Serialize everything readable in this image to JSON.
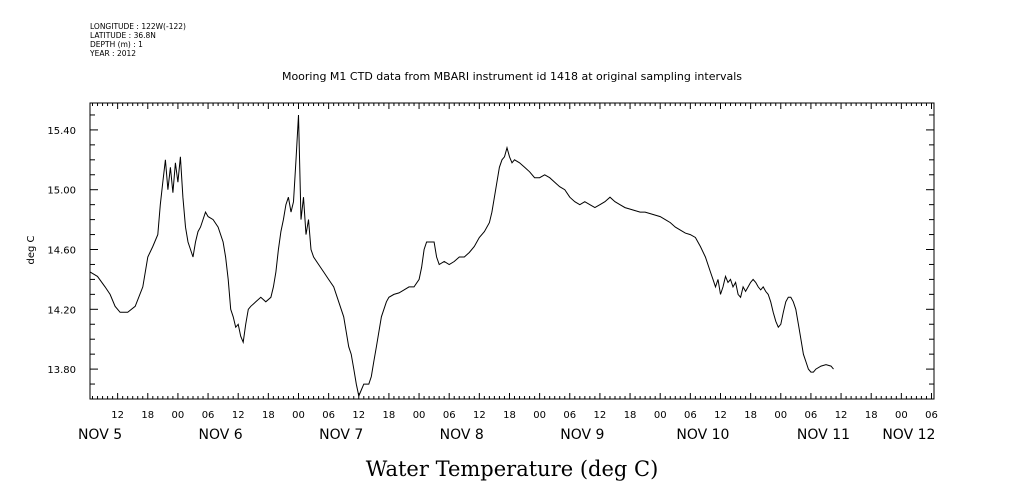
{
  "meta": {
    "longitude": "LONGITUDE : 122W(-122)",
    "latitude": "LATITUDE : 36.8N",
    "depth": "DEPTH (m) : 1",
    "year": "YEAR : 2012"
  },
  "chart_data": {
    "type": "line",
    "title": "Mooring M1 CTD data from MBARI instrument id 1418 at original sampling intervals",
    "xlabel": "Water Temperature (deg C)",
    "ylabel": "deg C",
    "x_unit": "hours from 00:00 NOV 5",
    "xlim": [
      6.5,
      174.5
    ],
    "ylim": [
      13.6,
      15.58
    ],
    "yticks": [
      13.8,
      14.2,
      14.6,
      15.0,
      15.4
    ],
    "ytick_labels": [
      "13.80",
      "14.20",
      "14.60",
      "15.00",
      "15.40"
    ],
    "hour_ticks": [
      {
        "x": 12,
        "label": "12"
      },
      {
        "x": 18,
        "label": "18"
      },
      {
        "x": 24,
        "label": "00"
      },
      {
        "x": 30,
        "label": "06"
      },
      {
        "x": 36,
        "label": "12"
      },
      {
        "x": 42,
        "label": "18"
      },
      {
        "x": 48,
        "label": "00"
      },
      {
        "x": 54,
        "label": "06"
      },
      {
        "x": 60,
        "label": "12"
      },
      {
        "x": 66,
        "label": "18"
      },
      {
        "x": 72,
        "label": "00"
      },
      {
        "x": 78,
        "label": "06"
      },
      {
        "x": 84,
        "label": "12"
      },
      {
        "x": 90,
        "label": "18"
      },
      {
        "x": 96,
        "label": "00"
      },
      {
        "x": 102,
        "label": "06"
      },
      {
        "x": 108,
        "label": "12"
      },
      {
        "x": 114,
        "label": "18"
      },
      {
        "x": 120,
        "label": "00"
      },
      {
        "x": 126,
        "label": "06"
      },
      {
        "x": 132,
        "label": "12"
      },
      {
        "x": 138,
        "label": "18"
      },
      {
        "x": 144,
        "label": "00"
      },
      {
        "x": 150,
        "label": "06"
      },
      {
        "x": 156,
        "label": "12"
      },
      {
        "x": 162,
        "label": "18"
      },
      {
        "x": 168,
        "label": "00"
      },
      {
        "x": 174,
        "label": "06"
      }
    ],
    "day_labels": [
      {
        "x": 8.5,
        "label": "NOV  5"
      },
      {
        "x": 32.5,
        "label": "NOV  6"
      },
      {
        "x": 56.5,
        "label": "NOV  7"
      },
      {
        "x": 80.5,
        "label": "NOV  8"
      },
      {
        "x": 104.5,
        "label": "NOV  9"
      },
      {
        "x": 128.5,
        "label": "NOV 10"
      },
      {
        "x": 152.5,
        "label": "NOV 11"
      },
      {
        "x": 169.5,
        "label": "NOV 12"
      }
    ],
    "series": [
      {
        "points": [
          [
            6.5,
            14.45
          ],
          [
            8,
            14.42
          ],
          [
            9.5,
            14.35
          ],
          [
            10.5,
            14.3
          ],
          [
            11.5,
            14.22
          ],
          [
            12.5,
            14.18
          ],
          [
            14,
            14.18
          ],
          [
            15.5,
            14.22
          ],
          [
            17,
            14.35
          ],
          [
            18,
            14.55
          ],
          [
            19,
            14.62
          ],
          [
            20,
            14.7
          ],
          [
            20.5,
            14.9
          ],
          [
            21,
            15.05
          ],
          [
            21.5,
            15.2
          ],
          [
            22,
            15.0
          ],
          [
            22.5,
            15.15
          ],
          [
            23,
            14.98
          ],
          [
            23.5,
            15.18
          ],
          [
            24,
            15.05
          ],
          [
            24.5,
            15.22
          ],
          [
            25,
            14.95
          ],
          [
            25.5,
            14.75
          ],
          [
            26,
            14.65
          ],
          [
            26.5,
            14.6
          ],
          [
            27,
            14.55
          ],
          [
            27.5,
            14.65
          ],
          [
            28,
            14.72
          ],
          [
            28.5,
            14.75
          ],
          [
            29,
            14.8
          ],
          [
            29.5,
            14.85
          ],
          [
            30,
            14.82
          ],
          [
            31,
            14.8
          ],
          [
            32,
            14.75
          ],
          [
            33,
            14.65
          ],
          [
            33.5,
            14.55
          ],
          [
            34,
            14.4
          ],
          [
            34.5,
            14.2
          ],
          [
            35,
            14.15
          ],
          [
            35.5,
            14.08
          ],
          [
            36,
            14.1
          ],
          [
            36.5,
            14.02
          ],
          [
            37,
            13.98
          ],
          [
            37.5,
            14.1
          ],
          [
            38,
            14.2
          ],
          [
            38.5,
            14.22
          ],
          [
            39.5,
            14.25
          ],
          [
            40.5,
            14.28
          ],
          [
            41.5,
            14.25
          ],
          [
            42.5,
            14.28
          ],
          [
            43,
            14.35
          ],
          [
            43.5,
            14.45
          ],
          [
            44,
            14.6
          ],
          [
            44.5,
            14.72
          ],
          [
            45,
            14.8
          ],
          [
            45.5,
            14.9
          ],
          [
            46,
            14.95
          ],
          [
            46.5,
            14.85
          ],
          [
            47,
            14.92
          ],
          [
            47.5,
            15.2
          ],
          [
            48,
            15.5
          ],
          [
            48.5,
            14.8
          ],
          [
            49,
            14.95
          ],
          [
            49.5,
            14.7
          ],
          [
            50,
            14.8
          ],
          [
            50.5,
            14.6
          ],
          [
            51,
            14.55
          ],
          [
            52,
            14.5
          ],
          [
            53,
            14.45
          ],
          [
            54,
            14.4
          ],
          [
            55,
            14.35
          ],
          [
            56,
            14.25
          ],
          [
            57,
            14.15
          ],
          [
            57.5,
            14.05
          ],
          [
            58,
            13.95
          ],
          [
            58.5,
            13.9
          ],
          [
            59,
            13.8
          ],
          [
            59.5,
            13.7
          ],
          [
            60,
            13.62
          ],
          [
            60.5,
            13.66
          ],
          [
            61,
            13.7
          ],
          [
            62,
            13.7
          ],
          [
            62.5,
            13.75
          ],
          [
            63,
            13.85
          ],
          [
            63.5,
            13.95
          ],
          [
            64,
            14.05
          ],
          [
            64.5,
            14.15
          ],
          [
            65,
            14.2
          ],
          [
            65.5,
            14.25
          ],
          [
            66,
            14.28
          ],
          [
            67,
            14.3
          ],
          [
            68,
            14.31
          ],
          [
            69,
            14.33
          ],
          [
            70,
            14.35
          ],
          [
            71,
            14.35
          ],
          [
            72,
            14.4
          ],
          [
            72.5,
            14.48
          ],
          [
            73,
            14.6
          ],
          [
            73.5,
            14.65
          ],
          [
            74,
            14.65
          ],
          [
            75,
            14.65
          ],
          [
            75.5,
            14.55
          ],
          [
            76,
            14.5
          ],
          [
            77,
            14.52
          ],
          [
            78,
            14.5
          ],
          [
            79,
            14.52
          ],
          [
            80,
            14.55
          ],
          [
            81,
            14.55
          ],
          [
            82,
            14.58
          ],
          [
            83,
            14.62
          ],
          [
            84,
            14.68
          ],
          [
            85,
            14.72
          ],
          [
            86,
            14.78
          ],
          [
            86.5,
            14.85
          ],
          [
            87,
            14.95
          ],
          [
            87.5,
            15.05
          ],
          [
            88,
            15.15
          ],
          [
            88.5,
            15.2
          ],
          [
            89,
            15.22
          ],
          [
            89.5,
            15.28
          ],
          [
            90,
            15.22
          ],
          [
            90.5,
            15.18
          ],
          [
            91,
            15.2
          ],
          [
            92,
            15.18
          ],
          [
            93,
            15.15
          ],
          [
            94,
            15.12
          ],
          [
            95,
            15.08
          ],
          [
            96,
            15.08
          ],
          [
            97,
            15.1
          ],
          [
            98,
            15.08
          ],
          [
            99,
            15.05
          ],
          [
            100,
            15.02
          ],
          [
            101,
            15.0
          ],
          [
            102,
            14.95
          ],
          [
            103,
            14.92
          ],
          [
            104,
            14.9
          ],
          [
            105,
            14.92
          ],
          [
            106,
            14.9
          ],
          [
            107,
            14.88
          ],
          [
            108,
            14.9
          ],
          [
            109,
            14.92
          ],
          [
            110,
            14.95
          ],
          [
            111,
            14.92
          ],
          [
            112,
            14.9
          ],
          [
            113,
            14.88
          ],
          [
            114,
            14.87
          ],
          [
            115,
            14.86
          ],
          [
            116,
            14.85
          ],
          [
            117,
            14.85
          ],
          [
            118,
            14.84
          ],
          [
            119,
            14.83
          ],
          [
            120,
            14.82
          ],
          [
            121,
            14.8
          ],
          [
            122,
            14.78
          ],
          [
            123,
            14.75
          ],
          [
            124,
            14.73
          ],
          [
            125,
            14.71
          ],
          [
            126,
            14.7
          ],
          [
            127,
            14.68
          ],
          [
            128,
            14.62
          ],
          [
            129,
            14.55
          ],
          [
            130,
            14.45
          ],
          [
            130.5,
            14.4
          ],
          [
            131,
            14.35
          ],
          [
            131.5,
            14.4
          ],
          [
            132,
            14.3
          ],
          [
            132.5,
            14.35
          ],
          [
            133,
            14.42
          ],
          [
            133.5,
            14.38
          ],
          [
            134,
            14.4
          ],
          [
            134.5,
            14.35
          ],
          [
            135,
            14.38
          ],
          [
            135.5,
            14.3
          ],
          [
            136,
            14.28
          ],
          [
            136.5,
            14.35
          ],
          [
            137,
            14.32
          ],
          [
            137.5,
            14.35
          ],
          [
            138,
            14.38
          ],
          [
            138.5,
            14.4
          ],
          [
            139,
            14.38
          ],
          [
            139.5,
            14.35
          ],
          [
            140,
            14.33
          ],
          [
            140.5,
            14.35
          ],
          [
            141,
            14.32
          ],
          [
            141.5,
            14.3
          ],
          [
            142,
            14.25
          ],
          [
            142.5,
            14.18
          ],
          [
            143,
            14.12
          ],
          [
            143.5,
            14.08
          ],
          [
            144,
            14.1
          ],
          [
            144.5,
            14.18
          ],
          [
            145,
            14.25
          ],
          [
            145.5,
            14.28
          ],
          [
            146,
            14.28
          ],
          [
            146.5,
            14.25
          ],
          [
            147,
            14.2
          ],
          [
            147.5,
            14.1
          ],
          [
            148,
            14.0
          ],
          [
            148.5,
            13.9
          ],
          [
            149,
            13.85
          ],
          [
            149.5,
            13.8
          ],
          [
            150,
            13.78
          ],
          [
            150.5,
            13.78
          ],
          [
            151,
            13.8
          ],
          [
            152,
            13.82
          ],
          [
            153,
            13.83
          ],
          [
            154,
            13.82
          ],
          [
            154.5,
            13.8
          ]
        ]
      }
    ]
  }
}
